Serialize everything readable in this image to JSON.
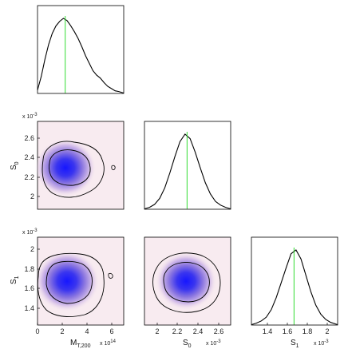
{
  "chart_data": [
    {
      "type": "line",
      "panel": "M_T200 marginal",
      "xlim": [
        0,
        7
      ],
      "x": [
        0.0,
        0.3,
        0.6,
        0.9,
        1.2,
        1.5,
        1.8,
        2.1,
        2.4,
        2.7,
        3.0,
        3.3,
        3.6,
        3.9,
        4.2,
        4.5,
        4.8,
        5.1,
        5.4,
        5.7,
        6.0,
        6.3,
        6.6,
        7.0
      ],
      "values": [
        0.04,
        0.22,
        0.45,
        0.65,
        0.8,
        0.9,
        0.96,
        1.0,
        0.97,
        0.9,
        0.82,
        0.73,
        0.62,
        0.5,
        0.4,
        0.3,
        0.24,
        0.2,
        0.14,
        0.09,
        0.06,
        0.03,
        0.02,
        0.0
      ],
      "marker_x": 2.25,
      "grid": false
    },
    {
      "type": "heatmap",
      "panel": "S0 vs M_T200",
      "xlim": [
        0,
        7
      ],
      "ylim": [
        1.9,
        2.75
      ],
      "y_multiplier": "x 10",
      "y_exponent": "-3",
      "y_ticks": [
        "2",
        "2.2",
        "2.4",
        "2.6"
      ],
      "density_peak": {
        "x": 2.0,
        "y": 2.3
      }
    },
    {
      "type": "line",
      "panel": "S0 marginal",
      "xlim": [
        1.9,
        2.75
      ],
      "x": [
        1.9,
        1.95,
        2.0,
        2.05,
        2.1,
        2.15,
        2.2,
        2.25,
        2.3,
        2.35,
        2.4,
        2.45,
        2.5,
        2.55,
        2.6,
        2.65,
        2.7,
        2.75
      ],
      "values": [
        0.0,
        0.02,
        0.06,
        0.14,
        0.28,
        0.48,
        0.7,
        0.9,
        1.0,
        0.94,
        0.76,
        0.55,
        0.35,
        0.2,
        0.1,
        0.05,
        0.02,
        0.0
      ],
      "marker_x": 2.32,
      "grid": false
    },
    {
      "type": "heatmap",
      "panel": "S1 vs M_T200",
      "xlim": [
        0,
        7
      ],
      "ylim": [
        1.25,
        2.12
      ],
      "y_multiplier": "x 10",
      "y_exponent": "-3",
      "y_ticks": [
        "1.4",
        "1.6",
        "1.8",
        "2"
      ],
      "x_ticks": [
        "0",
        "2",
        "4",
        "6"
      ],
      "x_multiplier": "x 10",
      "x_exponent": "14",
      "density_peak": {
        "x": 2.0,
        "y": 1.68
      }
    },
    {
      "type": "heatmap",
      "panel": "S1 vs S0",
      "xlim": [
        1.9,
        2.75
      ],
      "ylim": [
        1.25,
        2.12
      ],
      "x_ticks": [
        "2",
        "2.2",
        "2.4",
        "2.6"
      ],
      "x_multiplier": "x 10",
      "x_exponent": "-3",
      "density_peak": {
        "x": 2.32,
        "y": 1.68
      }
    },
    {
      "type": "line",
      "panel": "S1 marginal",
      "xlim": [
        1.25,
        2.12
      ],
      "x": [
        1.25,
        1.3,
        1.35,
        1.4,
        1.45,
        1.5,
        1.55,
        1.6,
        1.65,
        1.7,
        1.75,
        1.8,
        1.85,
        1.9,
        1.95,
        2.0,
        2.05,
        2.12
      ],
      "values": [
        0.0,
        0.02,
        0.05,
        0.1,
        0.2,
        0.36,
        0.56,
        0.76,
        0.95,
        1.0,
        0.88,
        0.66,
        0.44,
        0.26,
        0.14,
        0.07,
        0.03,
        0.0
      ],
      "marker_x": 1.68,
      "x_ticks": [
        "1.4",
        "1.6",
        "1.8",
        "2"
      ],
      "x_multiplier": "x 10",
      "x_exponent": "-3",
      "grid": false
    }
  ],
  "labels": {
    "x0_main": "M",
    "x0_sub": "T,200",
    "x1_main": "S",
    "x1_sub": "0",
    "x2_main": "S",
    "x2_sub": "1",
    "y1_main": "S",
    "y1_sub": "0",
    "y2_main": "S",
    "y2_sub": "1"
  },
  "colors": {
    "curve": "#000000",
    "marker": "#33dd33",
    "density_high": "#1a1aff",
    "density_low": "#f6e6ee"
  }
}
